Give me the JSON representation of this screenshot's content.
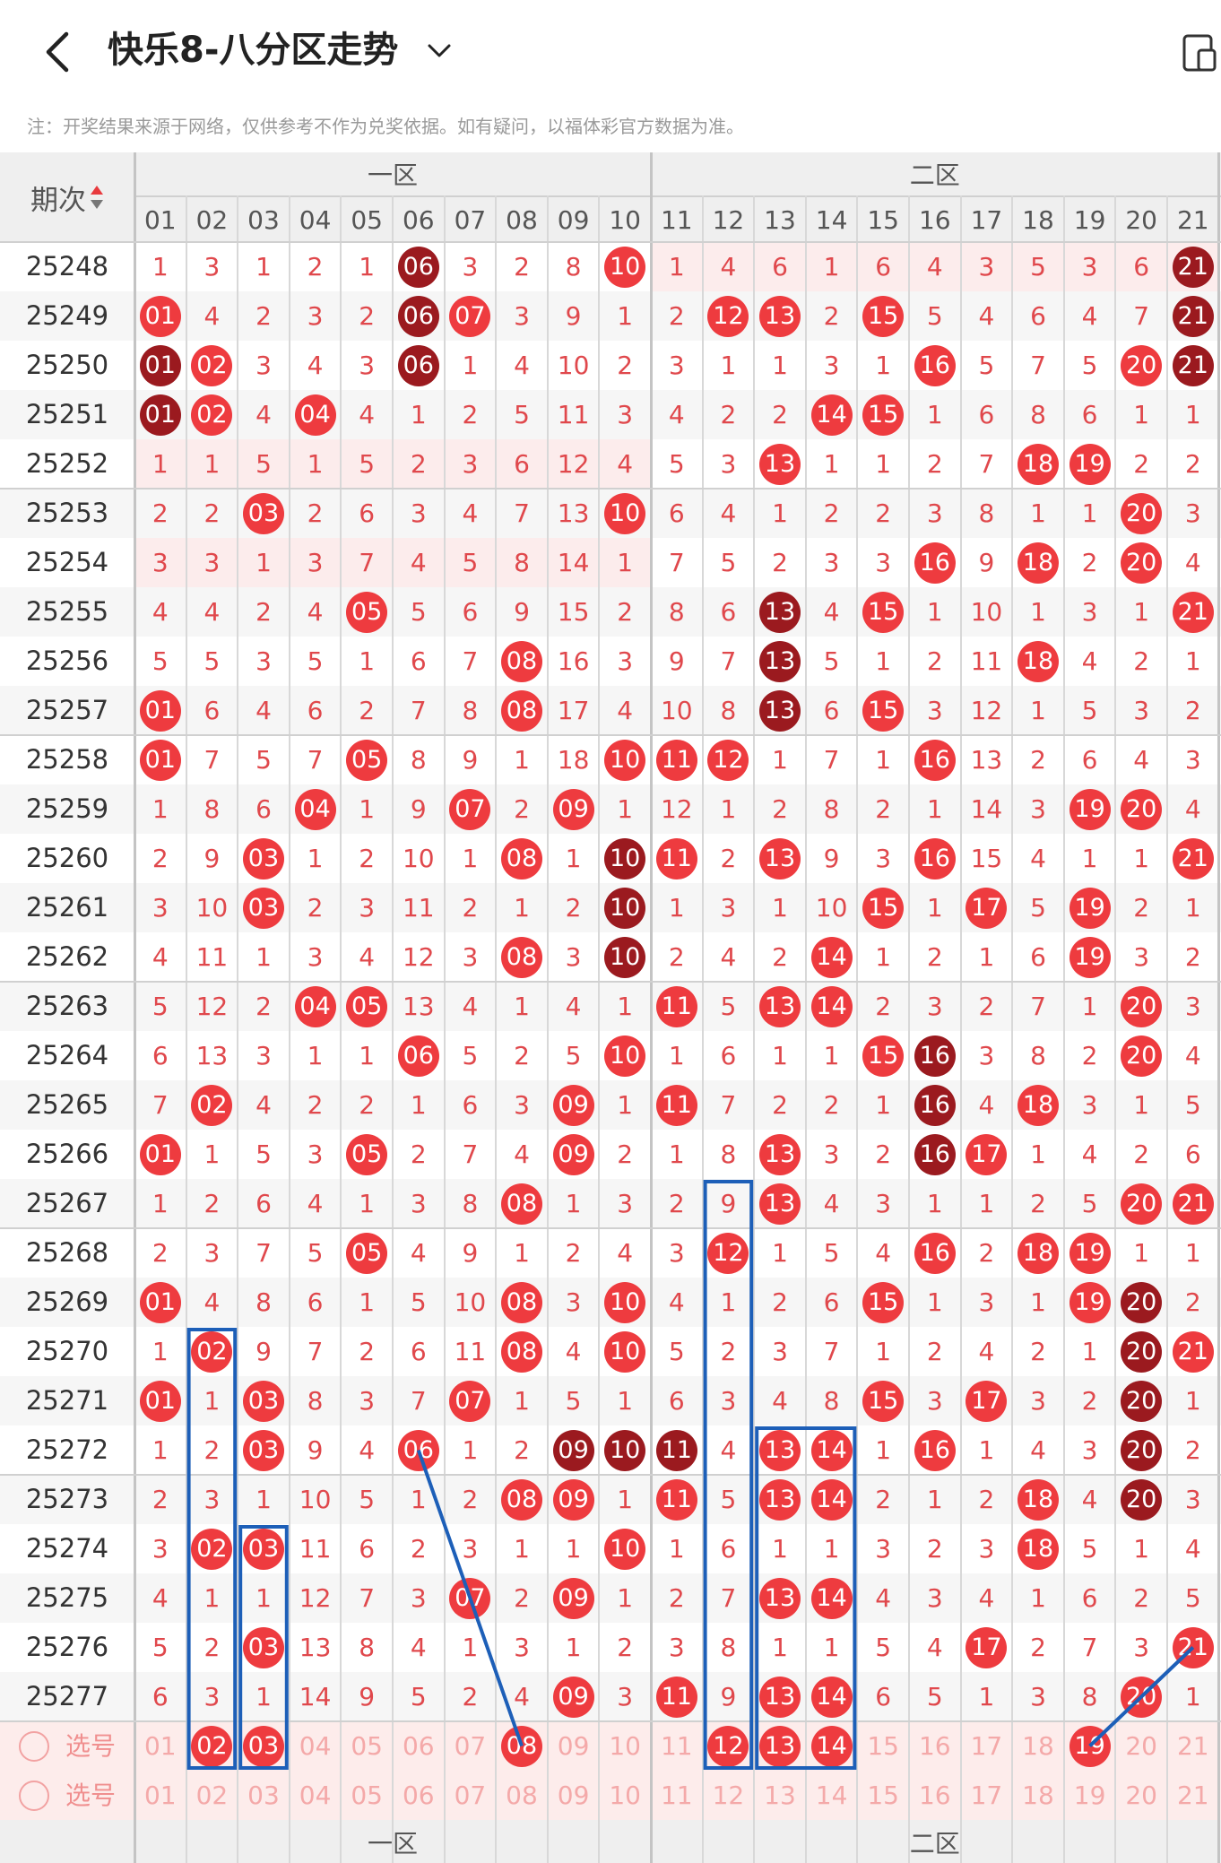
{
  "header": {
    "title": "快乐8-八分区走势",
    "notice": "注：开奖结果来源于网络，仅供参考不作为兑奖依据。如有疑问，以福体彩官方数据为准。"
  },
  "table": {
    "period_header": "期次",
    "zones": [
      "一区",
      "二区"
    ],
    "columns": [
      "01",
      "02",
      "03",
      "04",
      "05",
      "06",
      "07",
      "08",
      "09",
      "10",
      "11",
      "12",
      "13",
      "14",
      "15",
      "16",
      "17",
      "18",
      "19",
      "20",
      "21"
    ],
    "rows": [
      {
        "period": "25248",
        "cells": [
          "1",
          "3",
          "1",
          "2",
          "1",
          "06",
          "3",
          "2",
          "8",
          "10",
          "1",
          "4",
          "6",
          "1",
          "6",
          "4",
          "3",
          "5",
          "3",
          "6",
          "21"
        ]
      },
      {
        "period": "25249",
        "cells": [
          "01",
          "4",
          "2",
          "3",
          "2",
          "06",
          "07",
          "3",
          "9",
          "1",
          "2",
          "12",
          "13",
          "2",
          "15",
          "5",
          "4",
          "6",
          "4",
          "7",
          "21"
        ]
      },
      {
        "period": "25250",
        "cells": [
          "01",
          "02",
          "3",
          "4",
          "3",
          "06",
          "1",
          "4",
          "10",
          "2",
          "3",
          "1",
          "1",
          "3",
          "1",
          "16",
          "5",
          "7",
          "5",
          "20",
          "21"
        ]
      },
      {
        "period": "25251",
        "cells": [
          "01",
          "02",
          "4",
          "04",
          "4",
          "1",
          "2",
          "5",
          "11",
          "3",
          "4",
          "2",
          "2",
          "14",
          "15",
          "1",
          "6",
          "8",
          "6",
          "1",
          "1"
        ]
      },
      {
        "period": "25252",
        "cells": [
          "1",
          "1",
          "5",
          "1",
          "5",
          "2",
          "3",
          "6",
          "12",
          "4",
          "5",
          "3",
          "13",
          "1",
          "1",
          "2",
          "7",
          "18",
          "19",
          "2",
          "2"
        ]
      },
      {
        "period": "25253",
        "cells": [
          "2",
          "2",
          "03",
          "2",
          "6",
          "3",
          "4",
          "7",
          "13",
          "10",
          "6",
          "4",
          "1",
          "2",
          "2",
          "3",
          "8",
          "1",
          "1",
          "20",
          "3"
        ]
      },
      {
        "period": "25254",
        "cells": [
          "3",
          "3",
          "1",
          "3",
          "7",
          "4",
          "5",
          "8",
          "14",
          "1",
          "7",
          "5",
          "2",
          "3",
          "3",
          "16",
          "9",
          "18",
          "2",
          "20",
          "4"
        ]
      },
      {
        "period": "25255",
        "cells": [
          "4",
          "4",
          "2",
          "4",
          "05",
          "5",
          "6",
          "9",
          "15",
          "2",
          "8",
          "6",
          "13",
          "4",
          "15",
          "1",
          "10",
          "1",
          "3",
          "1",
          "21"
        ]
      },
      {
        "period": "25256",
        "cells": [
          "5",
          "5",
          "3",
          "5",
          "1",
          "6",
          "7",
          "08",
          "16",
          "3",
          "9",
          "7",
          "13",
          "5",
          "1",
          "2",
          "11",
          "18",
          "4",
          "2",
          "1"
        ]
      },
      {
        "period": "25257",
        "cells": [
          "01",
          "6",
          "4",
          "6",
          "2",
          "7",
          "8",
          "08",
          "17",
          "4",
          "10",
          "8",
          "13",
          "6",
          "15",
          "3",
          "12",
          "1",
          "5",
          "3",
          "2"
        ]
      },
      {
        "period": "25258",
        "cells": [
          "01",
          "7",
          "5",
          "7",
          "05",
          "8",
          "9",
          "1",
          "18",
          "10",
          "11",
          "12",
          "1",
          "7",
          "1",
          "16",
          "13",
          "2",
          "6",
          "4",
          "3"
        ]
      },
      {
        "period": "25259",
        "cells": [
          "1",
          "8",
          "6",
          "04",
          "1",
          "9",
          "07",
          "2",
          "09",
          "1",
          "12",
          "1",
          "2",
          "8",
          "2",
          "1",
          "14",
          "3",
          "19",
          "20",
          "4"
        ]
      },
      {
        "period": "25260",
        "cells": [
          "2",
          "9",
          "03",
          "1",
          "2",
          "10",
          "1",
          "08",
          "1",
          "10",
          "11",
          "2",
          "13",
          "9",
          "3",
          "16",
          "15",
          "4",
          "1",
          "1",
          "21"
        ]
      },
      {
        "period": "25261",
        "cells": [
          "3",
          "10",
          "03",
          "2",
          "3",
          "11",
          "2",
          "1",
          "2",
          "10",
          "1",
          "3",
          "1",
          "10",
          "15",
          "1",
          "17",
          "5",
          "19",
          "2",
          "1"
        ]
      },
      {
        "period": "25262",
        "cells": [
          "4",
          "11",
          "1",
          "3",
          "4",
          "12",
          "3",
          "08",
          "3",
          "10",
          "2",
          "4",
          "2",
          "14",
          "1",
          "2",
          "1",
          "6",
          "19",
          "3",
          "2"
        ]
      },
      {
        "period": "25263",
        "cells": [
          "5",
          "12",
          "2",
          "04",
          "05",
          "13",
          "4",
          "1",
          "4",
          "1",
          "11",
          "5",
          "13",
          "14",
          "2",
          "3",
          "2",
          "7",
          "1",
          "20",
          "3"
        ]
      },
      {
        "period": "25264",
        "cells": [
          "6",
          "13",
          "3",
          "1",
          "1",
          "06",
          "5",
          "2",
          "5",
          "10",
          "1",
          "6",
          "1",
          "1",
          "15",
          "16",
          "3",
          "8",
          "2",
          "20",
          "4"
        ]
      },
      {
        "period": "25265",
        "cells": [
          "7",
          "02",
          "4",
          "2",
          "2",
          "1",
          "6",
          "3",
          "09",
          "1",
          "11",
          "7",
          "2",
          "2",
          "1",
          "16",
          "4",
          "18",
          "3",
          "1",
          "5"
        ]
      },
      {
        "period": "25266",
        "cells": [
          "01",
          "1",
          "5",
          "3",
          "05",
          "2",
          "7",
          "4",
          "09",
          "2",
          "1",
          "8",
          "13",
          "3",
          "2",
          "16",
          "17",
          "1",
          "4",
          "2",
          "6"
        ]
      },
      {
        "period": "25267",
        "cells": [
          "1",
          "2",
          "6",
          "4",
          "1",
          "3",
          "8",
          "08",
          "1",
          "3",
          "2",
          "9",
          "13",
          "4",
          "3",
          "1",
          "1",
          "2",
          "5",
          "20",
          "21"
        ]
      },
      {
        "period": "25268",
        "cells": [
          "2",
          "3",
          "7",
          "5",
          "05",
          "4",
          "9",
          "1",
          "2",
          "4",
          "3",
          "12",
          "1",
          "5",
          "4",
          "16",
          "2",
          "18",
          "19",
          "1",
          "1"
        ]
      },
      {
        "period": "25269",
        "cells": [
          "01",
          "4",
          "8",
          "6",
          "1",
          "5",
          "10",
          "08",
          "3",
          "10",
          "4",
          "1",
          "2",
          "6",
          "15",
          "1",
          "3",
          "1",
          "19",
          "20",
          "2"
        ]
      },
      {
        "period": "25270",
        "cells": [
          "1",
          "02",
          "9",
          "7",
          "2",
          "6",
          "11",
          "08",
          "4",
          "10",
          "5",
          "2",
          "3",
          "7",
          "1",
          "2",
          "4",
          "2",
          "1",
          "20",
          "21"
        ]
      },
      {
        "period": "25271",
        "cells": [
          "01",
          "1",
          "03",
          "8",
          "3",
          "7",
          "07",
          "1",
          "5",
          "1",
          "6",
          "3",
          "4",
          "8",
          "15",
          "3",
          "17",
          "3",
          "2",
          "20",
          "1"
        ]
      },
      {
        "period": "25272",
        "cells": [
          "1",
          "2",
          "03",
          "9",
          "4",
          "06",
          "1",
          "2",
          "09",
          "10",
          "11",
          "4",
          "13",
          "14",
          "1",
          "16",
          "1",
          "4",
          "3",
          "20",
          "2"
        ]
      },
      {
        "period": "25273",
        "cells": [
          "2",
          "3",
          "1",
          "10",
          "5",
          "1",
          "2",
          "08",
          "09",
          "1",
          "11",
          "5",
          "13",
          "14",
          "2",
          "1",
          "2",
          "18",
          "4",
          "20",
          "3"
        ]
      },
      {
        "period": "25274",
        "cells": [
          "3",
          "02",
          "03",
          "11",
          "6",
          "2",
          "3",
          "1",
          "1",
          "10",
          "1",
          "6",
          "1",
          "1",
          "3",
          "2",
          "3",
          "18",
          "5",
          "1",
          "4"
        ]
      },
      {
        "period": "25275",
        "cells": [
          "4",
          "1",
          "1",
          "12",
          "7",
          "3",
          "07",
          "2",
          "09",
          "1",
          "2",
          "7",
          "13",
          "14",
          "4",
          "3",
          "4",
          "1",
          "6",
          "2",
          "5"
        ]
      },
      {
        "period": "25276",
        "cells": [
          "5",
          "2",
          "03",
          "13",
          "8",
          "4",
          "1",
          "3",
          "1",
          "2",
          "3",
          "8",
          "1",
          "1",
          "5",
          "4",
          "17",
          "2",
          "7",
          "3",
          "21"
        ]
      },
      {
        "period": "25277",
        "cells": [
          "6",
          "3",
          "1",
          "14",
          "9",
          "5",
          "2",
          "4",
          "09",
          "3",
          "11",
          "9",
          "13",
          "14",
          "6",
          "5",
          "1",
          "3",
          "8",
          "20",
          "1"
        ]
      }
    ],
    "select_rows": [
      {
        "label": "选号",
        "cells": [
          "01",
          "02",
          "03",
          "04",
          "05",
          "06",
          "07",
          "08",
          "09",
          "10",
          "11",
          "12",
          "13",
          "14",
          "15",
          "16",
          "17",
          "18",
          "19",
          "20",
          "21"
        ]
      },
      {
        "label": "选号",
        "cells": [
          "01",
          "02",
          "03",
          "04",
          "05",
          "06",
          "07",
          "08",
          "09",
          "10",
          "11",
          "12",
          "13",
          "14",
          "15",
          "16",
          "17",
          "18",
          "19",
          "20",
          "21"
        ]
      }
    ],
    "footer_zones": [
      "一区",
      "二区"
    ]
  },
  "colors": {
    "ball_red": "#ee3b3f",
    "ball_dark": "#9b1a1f",
    "miss_text": "#e0484c",
    "blue_frame": "#1d5fb8",
    "header_bg": "#efefef"
  }
}
